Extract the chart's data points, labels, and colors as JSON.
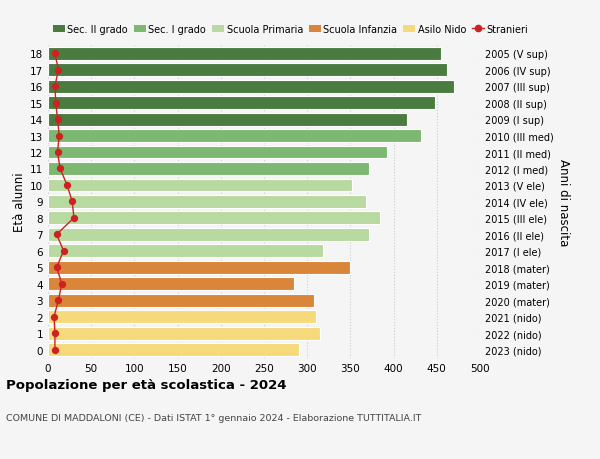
{
  "ages": [
    18,
    17,
    16,
    15,
    14,
    13,
    12,
    11,
    10,
    9,
    8,
    7,
    6,
    5,
    4,
    3,
    2,
    1,
    0
  ],
  "labels_right": [
    "2005 (V sup)",
    "2006 (IV sup)",
    "2007 (III sup)",
    "2008 (II sup)",
    "2009 (I sup)",
    "2010 (III med)",
    "2011 (II med)",
    "2012 (I med)",
    "2013 (V ele)",
    "2014 (IV ele)",
    "2015 (III ele)",
    "2016 (II ele)",
    "2017 (I ele)",
    "2018 (mater)",
    "2019 (mater)",
    "2020 (mater)",
    "2021 (nido)",
    "2022 (nido)",
    "2023 (nido)"
  ],
  "bar_values": [
    455,
    462,
    470,
    448,
    415,
    432,
    392,
    372,
    352,
    368,
    384,
    372,
    318,
    350,
    285,
    308,
    310,
    315,
    290
  ],
  "bar_colors": [
    "#4a7c3f",
    "#4a7c3f",
    "#4a7c3f",
    "#4a7c3f",
    "#4a7c3f",
    "#7db870",
    "#7db870",
    "#7db870",
    "#b8d9a0",
    "#b8d9a0",
    "#b8d9a0",
    "#b8d9a0",
    "#b8d9a0",
    "#d9853a",
    "#d9853a",
    "#d9853a",
    "#f5d97a",
    "#f5d97a",
    "#f5d97a"
  ],
  "stranieri_values": [
    8,
    12,
    8,
    9,
    11,
    13,
    11,
    14,
    22,
    28,
    30,
    10,
    18,
    10,
    16,
    12,
    7,
    8,
    8
  ],
  "legend_labels": [
    "Sec. II grado",
    "Sec. I grado",
    "Scuola Primaria",
    "Scuola Infanzia",
    "Asilo Nido",
    "Stranieri"
  ],
  "legend_colors": [
    "#4a7c3f",
    "#7db870",
    "#b8d9a0",
    "#d9853a",
    "#f5d97a",
    "#cc2222"
  ],
  "ylabel_left": "Età alunni",
  "ylabel_right": "Anni di nascita",
  "title": "Popolazione per età scolastica - 2024",
  "subtitle": "COMUNE DI MADDALONI (CE) - Dati ISTAT 1° gennaio 2024 - Elaborazione TUTTITALIA.IT",
  "xlim": [
    0,
    500
  ],
  "xticks": [
    0,
    50,
    100,
    150,
    200,
    250,
    300,
    350,
    400,
    450,
    500
  ],
  "bg_color": "#f5f5f5",
  "grid_color": "#cccccc"
}
